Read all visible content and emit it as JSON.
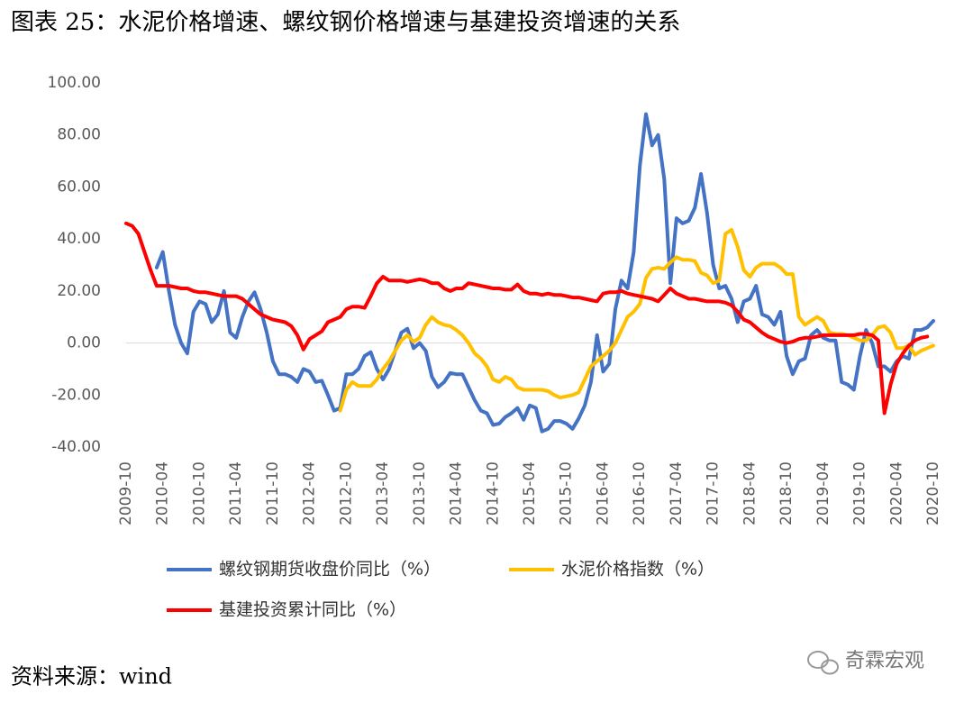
{
  "chart_data": {
    "type": "line",
    "title": "图表 25：水泥价格增速、螺纹钢价格增速与基建投资增速的关系",
    "source": "资料来源：wind",
    "watermark": "奇霖宏观",
    "categories": [
      "2009-10",
      null,
      null,
      null,
      null,
      null,
      "2010-04",
      null,
      null,
      null,
      null,
      null,
      "2010-10",
      null,
      null,
      null,
      null,
      null,
      "2011-04",
      null,
      null,
      null,
      null,
      null,
      "2011-10",
      null,
      null,
      null,
      null,
      null,
      "2012-04",
      null,
      null,
      null,
      null,
      null,
      "2012-10",
      null,
      null,
      null,
      null,
      null,
      "2013-04",
      null,
      null,
      null,
      null,
      null,
      "2013-10",
      null,
      null,
      null,
      null,
      null,
      "2014-04",
      null,
      null,
      null,
      null,
      null,
      "2014-10",
      null,
      null,
      null,
      null,
      null,
      "2015-04",
      null,
      null,
      null,
      null,
      null,
      "2015-10",
      null,
      null,
      null,
      null,
      null,
      "2016-04",
      null,
      null,
      null,
      null,
      null,
      "2016-10",
      null,
      null,
      null,
      null,
      null,
      "2017-04",
      null,
      null,
      null,
      null,
      null,
      "2017-10",
      null,
      null,
      null,
      null,
      null,
      "2018-04",
      null,
      null,
      null,
      null,
      null,
      "2018-10",
      null,
      null,
      null,
      null,
      null,
      "2019-04",
      null,
      null,
      null,
      null,
      null,
      "2019-10",
      null,
      null,
      null,
      null,
      null,
      "2020-04",
      null,
      null,
      null,
      null,
      null,
      "2020-10"
    ],
    "series": [
      {
        "name": "螺纹钢期货收盘价同比（%）",
        "color": "#4472c4",
        "values": [
          null,
          null,
          null,
          null,
          null,
          29,
          35,
          20,
          7,
          0,
          -4,
          12,
          16,
          15,
          8,
          11,
          20,
          4,
          2,
          10,
          16,
          19.5,
          13,
          4,
          -7,
          -12,
          -12,
          -13,
          -15,
          -10,
          -11,
          -15,
          -14.5,
          -20,
          -26,
          -25,
          -12,
          -12,
          -10,
          -5,
          -3.5,
          -10,
          -14,
          -10,
          -3,
          4,
          5.5,
          -2,
          0,
          -3,
          -13,
          -17,
          -15,
          -11.5,
          -12,
          -12,
          -17,
          -22,
          -26,
          -27,
          -31.5,
          -31,
          -28.5,
          -27,
          -25,
          -29.5,
          -24,
          -25,
          -34,
          -33,
          -30,
          -30,
          -31,
          -33,
          -29,
          -24,
          -15,
          3,
          -11,
          -8,
          13,
          24,
          21,
          35,
          68,
          88,
          76,
          80,
          63,
          23,
          48,
          46,
          47,
          52,
          65,
          50,
          30,
          21,
          22,
          17,
          8,
          16,
          17,
          22,
          11,
          10,
          7,
          12,
          -5,
          -12,
          -7,
          -6,
          3,
          5,
          2,
          1,
          1,
          -15,
          -16,
          -18,
          -5,
          5,
          0,
          -9,
          -9,
          -11,
          -7,
          -5,
          -6,
          5,
          5,
          6,
          8.5
        ]
      },
      {
        "name": "水泥价格指数（%）",
        "color": "#ffc000",
        "values": [
          null,
          null,
          null,
          null,
          null,
          null,
          null,
          null,
          null,
          null,
          null,
          null,
          null,
          null,
          null,
          null,
          null,
          null,
          null,
          null,
          null,
          null,
          null,
          null,
          null,
          null,
          null,
          null,
          null,
          null,
          null,
          null,
          null,
          null,
          null,
          -26,
          -18,
          -15,
          -16.5,
          -16.5,
          -16.5,
          -14,
          -10,
          -7,
          -3,
          1,
          3,
          0.5,
          2,
          7,
          10,
          8,
          7,
          6.5,
          5,
          3,
          0,
          -4,
          -6,
          -9,
          -14,
          -15,
          -13,
          -14,
          -17,
          -18,
          -18,
          -18,
          -18,
          -18.5,
          -20,
          -21,
          -20.5,
          -20,
          -19,
          -14,
          -9,
          -7,
          -5,
          -3,
          0,
          5,
          10,
          12,
          15,
          25,
          28.5,
          29,
          28.5,
          31,
          33,
          32,
          32,
          31.5,
          27,
          26,
          23,
          24,
          42,
          43.5,
          37,
          28,
          25.5,
          29,
          30.5,
          30.5,
          30.5,
          29,
          26.5,
          26.5,
          10,
          7,
          8.5,
          10,
          8.5,
          4,
          3.5,
          3.5,
          3,
          2,
          1,
          1,
          3,
          6,
          6.5,
          4,
          -2,
          -2,
          -1,
          -4.5,
          -3,
          -2,
          -1
        ]
      },
      {
        "name": "基建投资累计同比（%）",
        "color": "#ff0000",
        "values": [
          46,
          45,
          42,
          35,
          28,
          22,
          22,
          22,
          21.5,
          21,
          21,
          20,
          19.5,
          19.5,
          19,
          18.5,
          18,
          18,
          18,
          17,
          15,
          13,
          11,
          10,
          9,
          8.5,
          8,
          6.5,
          3,
          -2.5,
          1.5,
          3,
          4.5,
          8,
          9,
          10,
          13,
          14,
          14,
          13.5,
          18,
          23,
          25.5,
          24,
          24,
          24,
          23.5,
          24,
          24.5,
          24,
          23,
          23,
          21,
          20,
          21,
          21,
          23,
          22.5,
          22,
          21.5,
          21,
          21,
          20.5,
          20.5,
          22.5,
          20,
          19,
          19,
          18.5,
          19,
          18.5,
          18.5,
          18,
          17.5,
          17.5,
          17,
          16.5,
          16,
          19,
          19.5,
          19.5,
          20,
          19,
          18.5,
          18,
          17.5,
          17,
          16,
          18.5,
          21,
          19,
          18,
          17,
          17,
          16.5,
          16,
          16,
          16,
          15.5,
          14.5,
          12,
          9,
          8,
          6,
          4,
          2.5,
          1.5,
          0.5,
          0,
          0.5,
          1.5,
          2,
          2,
          2.5,
          3,
          3,
          3,
          3,
          3,
          3,
          3.5,
          3.5,
          3,
          1,
          -27,
          -16,
          -8,
          -4,
          -1,
          1,
          2,
          2.5,
          null
        ]
      }
    ],
    "ylim": [
      -40,
      100
    ],
    "yticks": [
      {
        "value": -40,
        "label": "-40.00"
      },
      {
        "value": -20,
        "label": "-20.00"
      },
      {
        "value": 0,
        "label": "0.00"
      },
      {
        "value": 20,
        "label": "20.00"
      },
      {
        "value": 40,
        "label": "40.00"
      },
      {
        "value": 60,
        "label": "60.00"
      },
      {
        "value": 80,
        "label": "80.00"
      },
      {
        "value": 100,
        "label": "100.00"
      }
    ],
    "grid": false
  }
}
